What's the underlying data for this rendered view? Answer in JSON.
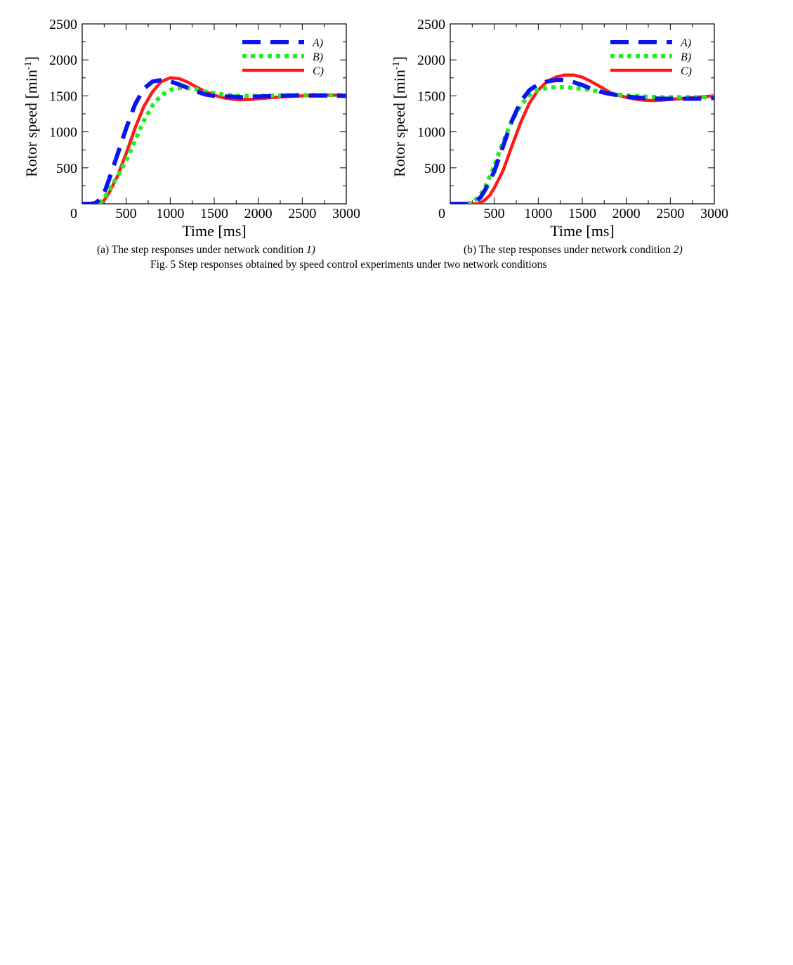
{
  "figure": {
    "caption": "Fig. 5  Step responses obtained by speed control experiments under two network conditions"
  },
  "colors": {
    "A": "#0a14f0",
    "B": "#22ee22",
    "C": "#ff1a1a"
  },
  "chart_data": [
    {
      "type": "line",
      "caption": "(a) The step responses under network condition ",
      "caption_condition": "1)",
      "xlabel": "Time [ms]",
      "ylabel": "Rotor speed [min",
      "ylabel_sup": "-1",
      "ylabel_end": "]",
      "xlim": [
        0,
        3000
      ],
      "ylim": [
        0,
        2500
      ],
      "xticks": [
        "0",
        "500",
        "1000",
        "1500",
        "2000",
        "2500",
        "3000"
      ],
      "yticks": [
        "500",
        "1000",
        "1500",
        "2000",
        "2500"
      ],
      "legend_position": "top-right",
      "grid": false,
      "series": [
        {
          "name": "A)",
          "style": "dashed",
          "x": [
            0,
            100,
            150,
            200,
            250,
            300,
            400,
            500,
            600,
            700,
            800,
            900,
            1000,
            1100,
            1200,
            1300,
            1400,
            1500,
            1600,
            1700,
            1800,
            1900,
            2000,
            2200,
            2400,
            2600,
            2800,
            3000
          ],
          "y": [
            0,
            0,
            10,
            60,
            150,
            320,
            680,
            1050,
            1380,
            1600,
            1700,
            1720,
            1700,
            1660,
            1610,
            1560,
            1520,
            1500,
            1490,
            1490,
            1480,
            1485,
            1490,
            1500,
            1505,
            1505,
            1505,
            1500
          ]
        },
        {
          "name": "B)",
          "style": "dotted",
          "x": [
            0,
            150,
            200,
            250,
            300,
            400,
            500,
            600,
            700,
            800,
            900,
            1000,
            1100,
            1200,
            1300,
            1400,
            1500,
            1600,
            1700,
            1800,
            1900,
            2000,
            2200,
            2400,
            2600,
            2800,
            3000
          ],
          "y": [
            0,
            0,
            20,
            80,
            180,
            380,
            600,
            880,
            1150,
            1370,
            1510,
            1580,
            1610,
            1610,
            1590,
            1560,
            1540,
            1520,
            1505,
            1500,
            1500,
            1500,
            1505,
            1510,
            1510,
            1510,
            1510
          ]
        },
        {
          "name": "C)",
          "style": "solid",
          "x": [
            0,
            150,
            200,
            250,
            300,
            400,
            500,
            600,
            700,
            800,
            900,
            1000,
            1100,
            1200,
            1300,
            1400,
            1500,
            1600,
            1700,
            1800,
            1900,
            2000,
            2200,
            2400,
            2600,
            2800,
            3000
          ],
          "y": [
            0,
            0,
            10,
            50,
            140,
            380,
            700,
            1050,
            1350,
            1560,
            1700,
            1750,
            1740,
            1690,
            1620,
            1560,
            1510,
            1475,
            1455,
            1445,
            1450,
            1460,
            1480,
            1495,
            1505,
            1510,
            1510
          ]
        }
      ]
    },
    {
      "type": "line",
      "caption": "(b) The step responses under network condition ",
      "caption_condition": "2)",
      "xlabel": "Time [ms]",
      "ylabel": "Rotor speed [min",
      "ylabel_sup": "-1",
      "ylabel_end": "]",
      "xlim": [
        0,
        3000
      ],
      "ylim": [
        0,
        2500
      ],
      "xticks": [
        "0",
        "500",
        "1000",
        "1500",
        "2000",
        "2500",
        "3000"
      ],
      "yticks": [
        "500",
        "1000",
        "1500",
        "2000",
        "2500"
      ],
      "legend_position": "top-right",
      "grid": false,
      "series": [
        {
          "name": "A)",
          "style": "dashed",
          "x": [
            0,
            200,
            250,
            300,
            350,
            400,
            500,
            600,
            700,
            800,
            900,
            1000,
            1100,
            1200,
            1300,
            1400,
            1500,
            1600,
            1700,
            1800,
            1900,
            2000,
            2200,
            2400,
            2600,
            2800,
            3000
          ],
          "y": [
            0,
            0,
            10,
            40,
            100,
            200,
            450,
            800,
            1150,
            1420,
            1580,
            1660,
            1700,
            1720,
            1720,
            1690,
            1650,
            1600,
            1560,
            1530,
            1510,
            1490,
            1470,
            1460,
            1460,
            1460,
            1470
          ]
        },
        {
          "name": "B)",
          "style": "dotted",
          "x": [
            0,
            200,
            250,
            300,
            350,
            400,
            500,
            600,
            700,
            800,
            900,
            1000,
            1100,
            1200,
            1300,
            1400,
            1500,
            1600,
            1700,
            1800,
            1900,
            2000,
            2200,
            2400,
            2600,
            2800,
            3000
          ],
          "y": [
            0,
            0,
            20,
            70,
            140,
            240,
            530,
            860,
            1150,
            1370,
            1510,
            1580,
            1610,
            1620,
            1620,
            1610,
            1600,
            1580,
            1560,
            1540,
            1520,
            1505,
            1490,
            1480,
            1480,
            1480,
            1480
          ]
        },
        {
          "name": "C)",
          "style": "solid",
          "x": [
            0,
            300,
            350,
            400,
            450,
            500,
            600,
            700,
            800,
            900,
            1000,
            1100,
            1200,
            1300,
            1400,
            1500,
            1600,
            1700,
            1800,
            1900,
            2000,
            2100,
            2200,
            2300,
            2400,
            2600,
            2800,
            3000
          ],
          "y": [
            0,
            0,
            20,
            60,
            120,
            220,
            460,
            800,
            1130,
            1400,
            1580,
            1700,
            1760,
            1790,
            1790,
            1760,
            1700,
            1630,
            1560,
            1510,
            1480,
            1455,
            1440,
            1435,
            1440,
            1460,
            1480,
            1500
          ]
        }
      ]
    }
  ]
}
